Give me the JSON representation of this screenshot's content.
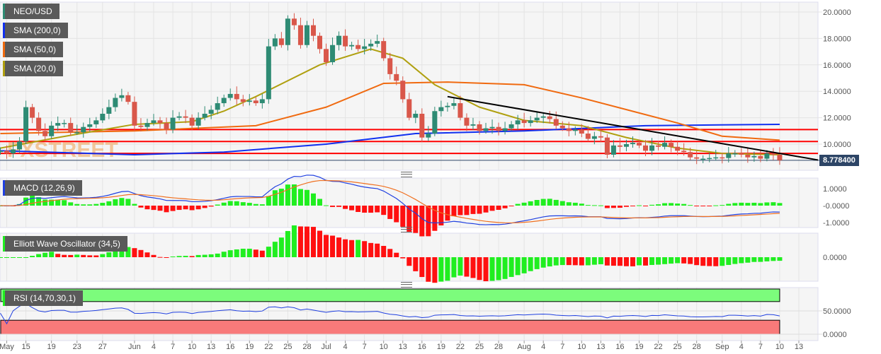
{
  "legends": {
    "pair": "NEO/USD",
    "sma200": "SMA (200,0)",
    "sma50": "SMA (50,0)",
    "sma20": "SMA (20,0)",
    "macd": "MACD (12,26,9)",
    "ewo": "Elliott Wave Oscillator (34,5)",
    "rsi": "RSI (14,70,30,1)"
  },
  "colors": {
    "up": "#2e8b74",
    "down": "#d9574a",
    "sma200": "#1030f0",
    "sma50": "#f06a10",
    "sma20": "#b0a010",
    "hline": "#ff0000",
    "macd": "#2040e0",
    "signal": "#f07020",
    "hist_up": "#20ee20",
    "hist_down": "#ff1010",
    "rsi_over": "#7cfc7c",
    "rsi_under": "#f87a7a"
  },
  "watermark": "FXSTREET",
  "last_price": "8.778400",
  "chart_data": {
    "type": "candlestick",
    "start_date": "May 11",
    "closes": [
      9.5,
      9.3,
      9.6,
      10.2,
      12.8,
      12.0,
      11.0,
      10.6,
      11.4,
      11.6,
      11.6,
      10.9,
      10.9,
      11.3,
      11.5,
      11.8,
      12.3,
      12.8,
      13.5,
      13.7,
      13.2,
      11.4,
      11.3,
      11.6,
      11.8,
      11.6,
      11.1,
      12.0,
      12.1,
      12.0,
      11.4,
      12.0,
      12.3,
      12.6,
      13.1,
      13.5,
      13.8,
      13.4,
      13.2,
      13.3,
      13.1,
      13.4,
      17.4,
      18.0,
      17.5,
      19.5,
      19.0,
      17.5,
      19.0,
      18.2,
      17.2,
      16.2,
      17.5,
      18.2,
      17.4,
      17.5,
      17.2,
      17.4,
      17.6,
      17.8,
      16.5,
      15.3,
      14.8,
      13.4,
      12.0,
      12.3,
      10.5,
      10.8,
      12.5,
      12.8,
      12.9,
      13.1,
      12.0,
      11.4,
      11.5,
      11.0,
      11.2,
      11.3,
      11.0,
      11.2,
      11.5,
      11.8,
      11.6,
      11.8,
      12.0,
      12.1,
      11.9,
      11.4,
      11.2,
      11.0,
      11.1,
      10.8,
      10.4,
      10.6,
      10.5,
      9.2,
      9.9,
      9.8,
      10.0,
      10.1,
      9.9,
      9.5,
      9.9,
      9.8,
      10.1,
      9.8,
      9.5,
      9.4,
      9.0,
      8.9,
      8.9,
      8.95,
      9.0,
      8.95,
      9.3,
      9.3,
      9.2,
      9.0,
      9.1,
      8.9,
      9.3,
      9.2,
      8.78
    ],
    "sma200": [
      [
        0,
        9.5
      ],
      [
        21,
        9.2
      ],
      [
        35,
        9.4
      ],
      [
        51,
        10.0
      ],
      [
        65,
        10.8
      ],
      [
        82,
        11.0
      ],
      [
        101,
        11.4
      ],
      [
        122,
        11.5
      ]
    ],
    "sma50": [
      [
        0,
        10.8
      ],
      [
        21,
        11.0
      ],
      [
        40,
        11.4
      ],
      [
        51,
        12.8
      ],
      [
        60,
        14.6
      ],
      [
        70,
        14.7
      ],
      [
        82,
        14.5
      ],
      [
        91,
        13.5
      ],
      [
        106,
        11.6
      ],
      [
        113,
        10.6
      ],
      [
        122,
        10.3
      ]
    ],
    "sma20": [
      [
        0,
        9.7
      ],
      [
        9,
        10.5
      ],
      [
        21,
        11.5
      ],
      [
        30,
        11.7
      ],
      [
        35,
        12.5
      ],
      [
        40,
        13.6
      ],
      [
        50,
        16.0
      ],
      [
        58,
        17.2
      ],
      [
        63,
        16.5
      ],
      [
        68,
        14.5
      ],
      [
        75,
        12.8
      ],
      [
        82,
        11.8
      ],
      [
        91,
        11.4
      ],
      [
        98,
        10.5
      ],
      [
        106,
        9.7
      ],
      [
        113,
        9.3
      ],
      [
        122,
        9.2
      ]
    ],
    "support_resistance": [
      11.1,
      10.2,
      9.3
    ],
    "trendline": [
      [
        70,
        13.6
      ],
      [
        128,
        8.8
      ]
    ],
    "price_axis": {
      "ticks": [
        "20.0000",
        "18.0000",
        "16.0000",
        "14.0000",
        "12.0000",
        "10.0000"
      ],
      "values": [
        20,
        18,
        16,
        14,
        12,
        10
      ]
    },
    "macd_axis": {
      "ticks": [
        "1.0000",
        "-0.0000",
        "-1.0000"
      ],
      "values": [
        1,
        0,
        -1
      ]
    },
    "ewo_axis": {
      "ticks": [
        "0.0000"
      ]
    },
    "rsi_axis": {
      "ticks": [
        "50.0000",
        "0.0000"
      ],
      "values": [
        50,
        0
      ],
      "levels": [
        70,
        30
      ]
    },
    "date_ticks": [
      [
        "May",
        1
      ],
      [
        "15",
        4
      ],
      [
        "19",
        8
      ],
      [
        "23",
        12
      ],
      [
        "27",
        16
      ],
      [
        "Jun",
        21
      ],
      [
        "4",
        24
      ],
      [
        "7",
        27
      ],
      [
        "10",
        30
      ],
      [
        "13",
        33
      ],
      [
        "16",
        36
      ],
      [
        "19",
        39
      ],
      [
        "22",
        42
      ],
      [
        "25",
        45
      ],
      [
        "28",
        48
      ],
      [
        "Jul",
        51
      ],
      [
        "4",
        54
      ],
      [
        "7",
        57
      ],
      [
        "10",
        60
      ],
      [
        "13",
        63
      ],
      [
        "16",
        66
      ],
      [
        "19",
        69
      ],
      [
        "22",
        72
      ],
      [
        "25",
        75
      ],
      [
        "28",
        78
      ],
      [
        "Aug",
        82
      ],
      [
        "4",
        85
      ],
      [
        "7",
        88
      ],
      [
        "10",
        91
      ],
      [
        "13",
        94
      ],
      [
        "16",
        97
      ],
      [
        "19",
        100
      ],
      [
        "22",
        103
      ],
      [
        "25",
        106
      ],
      [
        "28",
        109
      ],
      [
        "Sep",
        113
      ],
      [
        "4",
        116
      ],
      [
        "7",
        119
      ],
      [
        "10",
        122
      ],
      [
        "13",
        125
      ]
    ]
  }
}
